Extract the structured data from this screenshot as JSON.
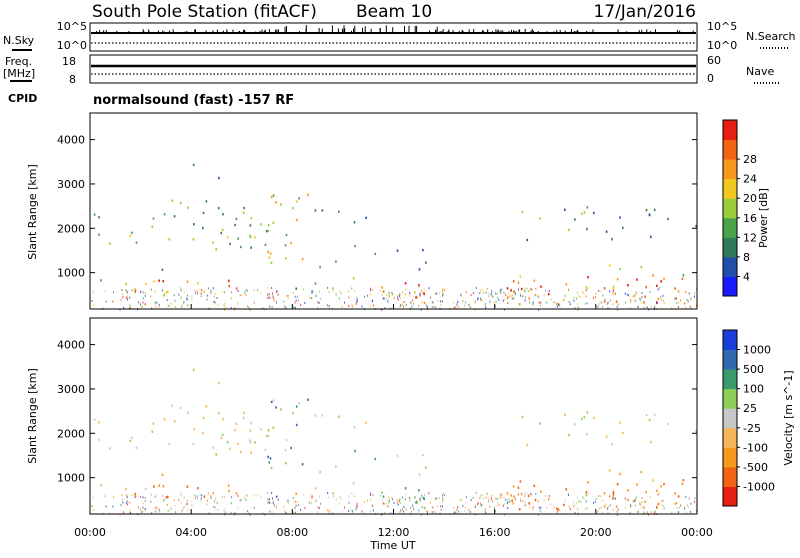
{
  "header": {
    "station": "South Pole Station (fitACF)",
    "beam": "Beam 10",
    "date": "17/Jan/2016"
  },
  "mini_panels": {
    "nsky_label": "N.Sky",
    "nsky_ticks": [
      "10^5",
      "10^0"
    ],
    "nsearch_label": "N.Search",
    "nsearch_ticks": [
      "10^5",
      "10^0"
    ],
    "freq_label": "Freq.",
    "freq_unit": "[MHz]",
    "freq_ticks": [
      "18",
      "8"
    ],
    "nave_label": "Nave",
    "nave_ticks": [
      "60",
      "0"
    ],
    "cpid_label": "CPID",
    "cpid_text": "normalsound (fast) -157 RF"
  },
  "chart_data": [
    {
      "type": "heatmap",
      "parameter": "Power",
      "ylabel": "Slant Range [km]",
      "yticks": [
        1000,
        2000,
        3000,
        4000
      ],
      "ylim": [
        180,
        4600
      ],
      "xlim_hours": [
        0,
        24
      ],
      "colorbar": {
        "label": "Power [dB]",
        "ticks": [
          "4",
          "8",
          "12",
          "16",
          "20",
          "24",
          "28"
        ],
        "colors": [
          "#1a1aff",
          "#1f4fa8",
          "#2f7a5a",
          "#4aa34a",
          "#9ccc3c",
          "#f2c81e",
          "#f59a1e",
          "#f06414",
          "#e81e10"
        ]
      },
      "features": [
        {
          "time": "01:30-06:30",
          "range_km": "600-900",
          "level": "20-28 dB"
        },
        {
          "time": "00:00-08:00",
          "range_km": "1500-2500",
          "level": "8-16 dB"
        },
        {
          "time": "07:00-09:00",
          "range_km": "1000-2800",
          "level": "12-24 dB"
        },
        {
          "time": "11:30-13:30",
          "range_km": "350-800",
          "level": "16-28 dB"
        },
        {
          "time": "16:30-24:00",
          "range_km": "300-1200",
          "level": "16-28 dB"
        },
        {
          "time": "16:30-24:00",
          "range_km": "1700-2500",
          "level": "8-16 dB"
        }
      ]
    },
    {
      "type": "heatmap",
      "parameter": "Velocity",
      "ylabel": "Slant Range [km]",
      "xlabel": "Time UT",
      "yticks": [
        1000,
        2000,
        3000,
        4000
      ],
      "ylim": [
        180,
        4600
      ],
      "xticks": [
        "00:00",
        "04:00",
        "08:00",
        "12:00",
        "16:00",
        "20:00",
        "00:00"
      ],
      "xlim_hours": [
        0,
        24
      ],
      "colorbar": {
        "label": "Velocity [m s^-1]",
        "ticks": [
          "-1000",
          "-500",
          "-100",
          "-25",
          "25",
          "100",
          "500",
          "1000"
        ],
        "colors": [
          "#e81e10",
          "#f06414",
          "#f59a1e",
          "#f5b55a",
          "#c8c8c8",
          "#8cd05a",
          "#3a9a6a",
          "#2f6ab0",
          "#1a3fd8"
        ]
      },
      "features": [
        {
          "time": "01:30-06:30",
          "range_km": "600-900",
          "velocity": "-100 to -500 m/s"
        },
        {
          "time": "00:00-08:00",
          "range_km": "1500-2500",
          "velocity": "-25 to 25 m/s"
        },
        {
          "time": "11:30-13:30",
          "range_km": "350-800",
          "velocity": "100 to 500 m/s"
        },
        {
          "time": "16:30-24:00",
          "range_km": "300-1000",
          "velocity": "-100 to -500 m/s"
        }
      ]
    }
  ]
}
